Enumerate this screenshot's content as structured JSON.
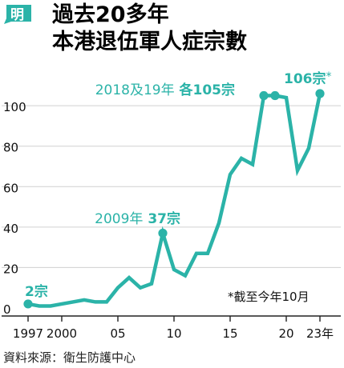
{
  "header": {
    "badge_label": "明",
    "title_line1": "過去20多年",
    "title_line2": "本港退伍軍人症宗數"
  },
  "colors": {
    "accent": "#2bb3a8",
    "axis": "#222222",
    "grid": "#d0d0d0",
    "text": "#111111"
  },
  "chart_data": {
    "type": "line",
    "title": "過去20多年 本港退伍軍人症宗數",
    "xlabel": "",
    "ylabel": "",
    "xlim": [
      1997,
      2023
    ],
    "ylim": [
      0,
      106
    ],
    "yticks": [
      0,
      20,
      40,
      60,
      80,
      100
    ],
    "xticks": [
      {
        "value": 1997,
        "label": "1997"
      },
      {
        "value": 2000,
        "label": "2000"
      },
      {
        "value": 2005,
        "label": "05"
      },
      {
        "value": 2010,
        "label": "10"
      },
      {
        "value": 2015,
        "label": "15"
      },
      {
        "value": 2020,
        "label": "20"
      },
      {
        "value": 2023,
        "label": "23年"
      }
    ],
    "grid": true,
    "series": [
      {
        "values": [
          {
            "x": 1997,
            "y": 2
          },
          {
            "x": 1998,
            "y": 1
          },
          {
            "x": 1999,
            "y": 1
          },
          {
            "x": 2000,
            "y": 2
          },
          {
            "x": 2001,
            "y": 3
          },
          {
            "x": 2002,
            "y": 4
          },
          {
            "x": 2003,
            "y": 3
          },
          {
            "x": 2004,
            "y": 3
          },
          {
            "x": 2005,
            "y": 10
          },
          {
            "x": 2006,
            "y": 15
          },
          {
            "x": 2007,
            "y": 10
          },
          {
            "x": 2008,
            "y": 12
          },
          {
            "x": 2009,
            "y": 37
          },
          {
            "x": 2010,
            "y": 19
          },
          {
            "x": 2011,
            "y": 16
          },
          {
            "x": 2012,
            "y": 27
          },
          {
            "x": 2013,
            "y": 27
          },
          {
            "x": 2014,
            "y": 42
          },
          {
            "x": 2015,
            "y": 66
          },
          {
            "x": 2016,
            "y": 74
          },
          {
            "x": 2017,
            "y": 71
          },
          {
            "x": 2018,
            "y": 105
          },
          {
            "x": 2019,
            "y": 105
          },
          {
            "x": 2020,
            "y": 104
          },
          {
            "x": 2021,
            "y": 68
          },
          {
            "x": 2022,
            "y": 79
          },
          {
            "x": 2023,
            "y": 106
          }
        ]
      }
    ],
    "highlighted_points": [
      1997,
      2009,
      2018,
      2019,
      2023
    ],
    "annotations": [
      {
        "text_parts": [
          "2018及19年",
          " 各105宗"
        ],
        "bold_from": 1
      },
      {
        "text_parts": [
          "2009年",
          " 37宗"
        ],
        "bold_from": 1
      },
      {
        "text_parts": [
          "106宗",
          "*"
        ],
        "bold_from": 0
      },
      {
        "text_parts": [
          "2宗"
        ],
        "bold_from": 0
      },
      {
        "text_parts": [
          "*截至今年10月"
        ],
        "bold_from": 99
      }
    ]
  },
  "source": "資料來源：衛生防護中心"
}
